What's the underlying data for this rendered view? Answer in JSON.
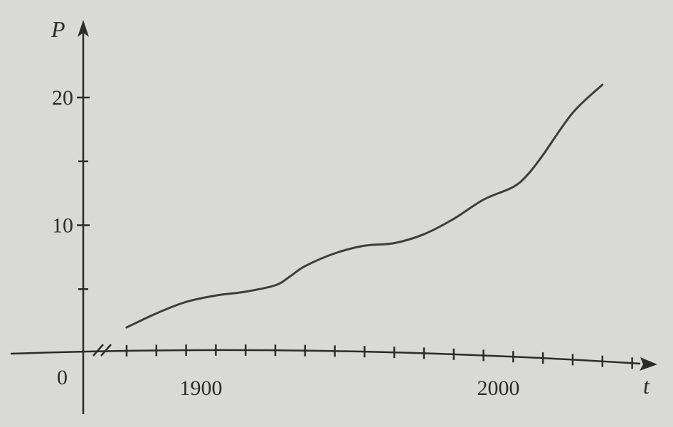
{
  "chart_data": {
    "type": "line",
    "title": "",
    "xlabel": "t",
    "ylabel": "P",
    "origin_label": "0",
    "x_tick_labels": [
      "1900",
      "2000"
    ],
    "y_tick_labels": [
      "10",
      "20"
    ],
    "xlim": [
      1870,
      2055
    ],
    "ylim": [
      0,
      22
    ],
    "x_minor_step": 10,
    "y_minor_step": 5,
    "axis_break": true,
    "grid": false,
    "series": [
      {
        "x": [
          1875,
          1885,
          1895,
          1905,
          1915,
          1925,
          1930,
          1935,
          1945,
          1955,
          1965,
          1975,
          1985,
          1995,
          2005,
          2010,
          2015,
          2025,
          2035
        ],
        "y": [
          2.0,
          3.1,
          4.0,
          4.5,
          4.8,
          5.3,
          6.0,
          6.8,
          7.8,
          8.4,
          8.6,
          9.3,
          10.5,
          12.0,
          13.0,
          14.0,
          15.5,
          18.8,
          21.0
        ],
        "color": "#3d3d3d"
      }
    ]
  }
}
